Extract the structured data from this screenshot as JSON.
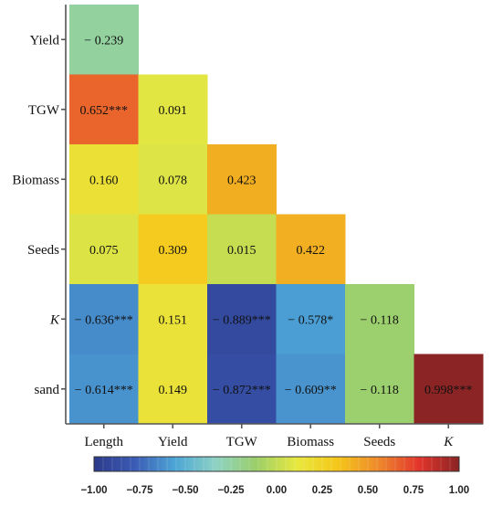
{
  "chart_data": {
    "type": "heatmap",
    "title": "",
    "rows": [
      "Yield",
      "TGW",
      "Biomass",
      "Seeds",
      "K",
      "sand"
    ],
    "columns": [
      "Length",
      "Yield",
      "TGW",
      "Biomass",
      "Seeds",
      "K"
    ],
    "italic_labels": [
      "K"
    ],
    "cells": [
      {
        "row": "Yield",
        "col": "Length",
        "value": -0.239,
        "label": "− 0.239"
      },
      {
        "row": "TGW",
        "col": "Length",
        "value": 0.652,
        "label": "0.652***"
      },
      {
        "row": "TGW",
        "col": "Yield",
        "value": 0.091,
        "label": "0.091"
      },
      {
        "row": "Biomass",
        "col": "Length",
        "value": 0.16,
        "label": "0.160"
      },
      {
        "row": "Biomass",
        "col": "Yield",
        "value": 0.078,
        "label": "0.078"
      },
      {
        "row": "Biomass",
        "col": "TGW",
        "value": 0.423,
        "label": "0.423"
      },
      {
        "row": "Seeds",
        "col": "Length",
        "value": 0.075,
        "label": "0.075"
      },
      {
        "row": "Seeds",
        "col": "Yield",
        "value": 0.309,
        "label": "0.309"
      },
      {
        "row": "Seeds",
        "col": "TGW",
        "value": 0.015,
        "label": "0.015"
      },
      {
        "row": "Seeds",
        "col": "Biomass",
        "value": 0.422,
        "label": "0.422"
      },
      {
        "row": "K",
        "col": "Length",
        "value": -0.636,
        "label": "− 0.636***"
      },
      {
        "row": "K",
        "col": "Yield",
        "value": 0.151,
        "label": "0.151"
      },
      {
        "row": "K",
        "col": "TGW",
        "value": -0.889,
        "label": "− 0.889***"
      },
      {
        "row": "K",
        "col": "Biomass",
        "value": -0.578,
        "label": "− 0.578*"
      },
      {
        "row": "K",
        "col": "Seeds",
        "value": -0.118,
        "label": "− 0.118"
      },
      {
        "row": "sand",
        "col": "Length",
        "value": -0.614,
        "label": "− 0.614***"
      },
      {
        "row": "sand",
        "col": "Yield",
        "value": 0.149,
        "label": "0.149"
      },
      {
        "row": "sand",
        "col": "TGW",
        "value": -0.872,
        "label": "− 0.872***"
      },
      {
        "row": "sand",
        "col": "Biomass",
        "value": -0.609,
        "label": "− 0.609**"
      },
      {
        "row": "sand",
        "col": "Seeds",
        "value": -0.118,
        "label": "− 0.118"
      },
      {
        "row": "sand",
        "col": "K",
        "value": 0.998,
        "label": "0.998***"
      }
    ],
    "colorbar": {
      "range": [
        -1.0,
        1.0
      ],
      "ticks": [
        "−1.00",
        "−0.75",
        "−0.50",
        "−0.25",
        "0.00",
        "0.25",
        "0.50",
        "0.75",
        "1.00"
      ],
      "placement": "bottom",
      "colors": [
        "#2c3a8a",
        "#3b5bb4",
        "#4da6d6",
        "#8dd2c4",
        "#9ccf6a",
        "#e8e83e",
        "#f5c71a",
        "#ee8a2c",
        "#e3352c",
        "#8a2424"
      ]
    },
    "axis_line_color": "#555555"
  }
}
